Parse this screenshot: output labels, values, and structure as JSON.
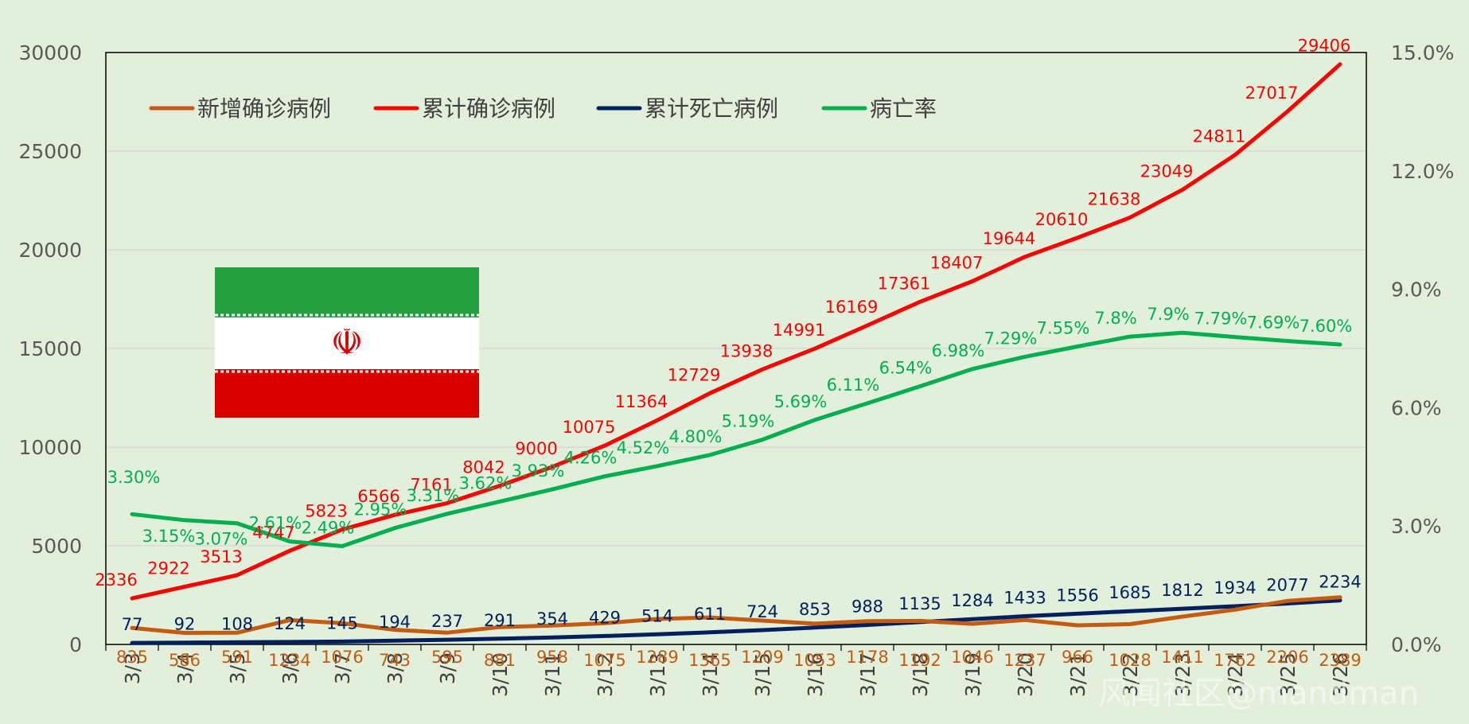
{
  "colors": {
    "background": "#e2efda",
    "new_cases": "#c55a11",
    "cumulative_cases": "#ff0000",
    "cumulative_deaths": "#002060",
    "fatality_rate": "#00b050",
    "grid": "#d9d9d9"
  },
  "flag": {
    "colors": [
      "#239f40",
      "#ffffff",
      "#da0000"
    ],
    "emblem": "☫"
  },
  "watermark": "风闻社区@mandman",
  "chart_data": {
    "type": "line",
    "title": "",
    "categories": [
      "3/3",
      "3/4",
      "3/5",
      "3/6",
      "3/7",
      "3/8",
      "3/9",
      "3/10",
      "3/11",
      "3/12",
      "3/13",
      "3/14",
      "3/15",
      "3/16",
      "3/17",
      "3/18",
      "3/19",
      "3/20",
      "3/21",
      "3/22",
      "3/23",
      "3/24",
      "3/25",
      "3/26"
    ],
    "y_left": {
      "min": 0,
      "max": 30000,
      "ticks": [
        "0",
        "5000",
        "10000",
        "15000",
        "20000",
        "25000",
        "30000"
      ]
    },
    "y_right": {
      "min": 0,
      "max": 15,
      "unit": "%",
      "ticks": [
        "0.0%",
        "3.0%",
        "6.0%",
        "9.0%",
        "12.0%",
        "15.0%"
      ]
    },
    "grid": true,
    "legend_position": "top-left",
    "series": [
      {
        "name": "新增确诊病例",
        "key": "new_cases",
        "axis": "left",
        "values": [
          835,
          586,
          591,
          1234,
          1076,
          743,
          595,
          881,
          958,
          1075,
          1289,
          1365,
          1209,
          1053,
          1178,
          1192,
          1046,
          1237,
          966,
          1028,
          1411,
          1762,
          2206,
          2389
        ],
        "labels": [
          "835",
          "586",
          "591",
          "1234",
          "1076",
          "743",
          "595",
          "881",
          "958",
          "1075",
          "1289",
          "1365",
          "1209",
          "1053",
          "1178",
          "1192",
          "1046",
          "1237",
          "966",
          "1028",
          "1411",
          "1762",
          "2206",
          "2389"
        ]
      },
      {
        "name": "累计确诊病例",
        "key": "cumulative_cases",
        "axis": "left",
        "values": [
          2336,
          2922,
          3513,
          4747,
          5823,
          6566,
          7161,
          8042,
          9000,
          10075,
          11364,
          12729,
          13938,
          14991,
          16169,
          17361,
          18407,
          19644,
          20610,
          21638,
          23049,
          24811,
          27017,
          29406
        ],
        "labels": [
          "2336",
          "2922",
          "3513",
          "4747",
          "5823",
          "6566",
          "7161",
          "8042",
          "9000",
          "10075",
          "11364",
          "12729",
          "13938",
          "14991",
          "16169",
          "17361",
          "18407",
          "19644",
          "20610",
          "21638",
          "23049",
          "24811",
          "27017",
          "29406"
        ]
      },
      {
        "name": "累计死亡病例",
        "key": "cumulative_deaths",
        "axis": "left",
        "values": [
          77,
          92,
          108,
          124,
          145,
          194,
          237,
          291,
          354,
          429,
          514,
          611,
          724,
          853,
          988,
          1135,
          1284,
          1433,
          1556,
          1685,
          1812,
          1934,
          2077,
          2234
        ],
        "labels": [
          "77",
          "92",
          "108",
          "124",
          "145",
          "194",
          "237",
          "291",
          "354",
          "429",
          "514",
          "611",
          "724",
          "853",
          "988",
          "1135",
          "1284",
          "1433",
          "1556",
          "1685",
          "1812",
          "1934",
          "2077",
          "2234"
        ]
      },
      {
        "name": "病亡率",
        "key": "fatality_rate",
        "axis": "right",
        "values": [
          3.3,
          3.15,
          3.07,
          2.61,
          2.49,
          2.95,
          3.31,
          3.62,
          3.93,
          4.26,
          4.52,
          4.8,
          5.19,
          5.69,
          6.11,
          6.54,
          6.98,
          7.29,
          7.55,
          7.8,
          7.9,
          7.79,
          7.69,
          7.6
        ],
        "labels": [
          "3.30%",
          "3.15%",
          "3.07%",
          "2.61%",
          "2.49%",
          "2.95%",
          "3.31%",
          "3.62%",
          "3.93%",
          "4.26%",
          "4.52%",
          "4.80%",
          "5.19%",
          "5.69%",
          "6.11%",
          "6.54%",
          "6.98%",
          "7.29%",
          "7.55%",
          "7.8%",
          "7.9%",
          "7.79%",
          "7.69%",
          "7.60%"
        ]
      }
    ]
  }
}
